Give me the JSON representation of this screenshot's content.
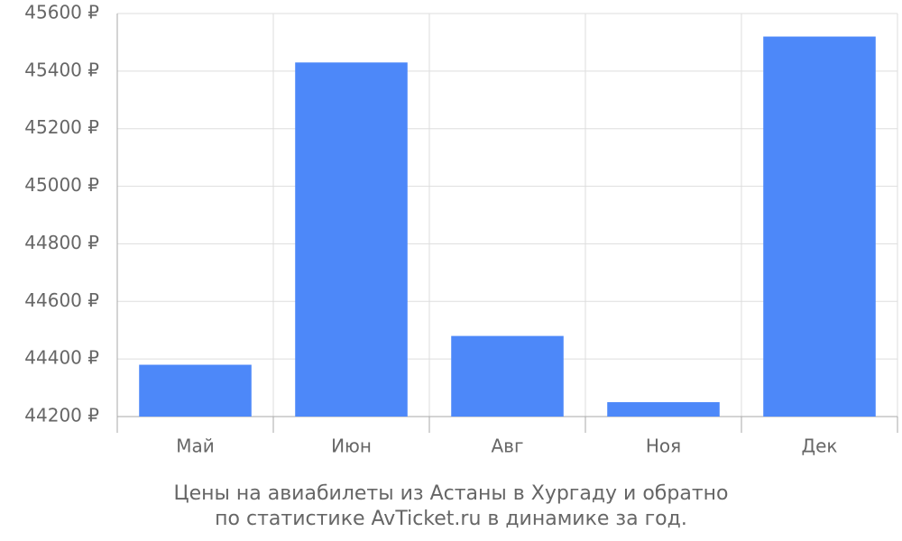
{
  "chart_data": {
    "type": "bar",
    "title": "Цены на авиабилеты из Астаны в Хургаду и обратно",
    "subtitle": "по статистике AvTicket.ru в динамике за год.",
    "categories": [
      "Май",
      "Июн",
      "Авг",
      "Ноя",
      "Дек"
    ],
    "values": [
      44380,
      45430,
      44480,
      44250,
      45520
    ],
    "color": "#4d88f9",
    "ylim": [
      44200,
      45600
    ],
    "yticks": [
      {
        "value": 44200,
        "label": "44200 ₽"
      },
      {
        "value": 44400,
        "label": "44400 ₽"
      },
      {
        "value": 44600,
        "label": "44600 ₽"
      },
      {
        "value": 44800,
        "label": "44800 ₽"
      },
      {
        "value": 45000,
        "label": "45000 ₽"
      },
      {
        "value": 45200,
        "label": "45200 ₽"
      },
      {
        "value": 45400,
        "label": "45400 ₽"
      },
      {
        "value": 45600,
        "label": "45600 ₽"
      }
    ],
    "grid": true
  }
}
